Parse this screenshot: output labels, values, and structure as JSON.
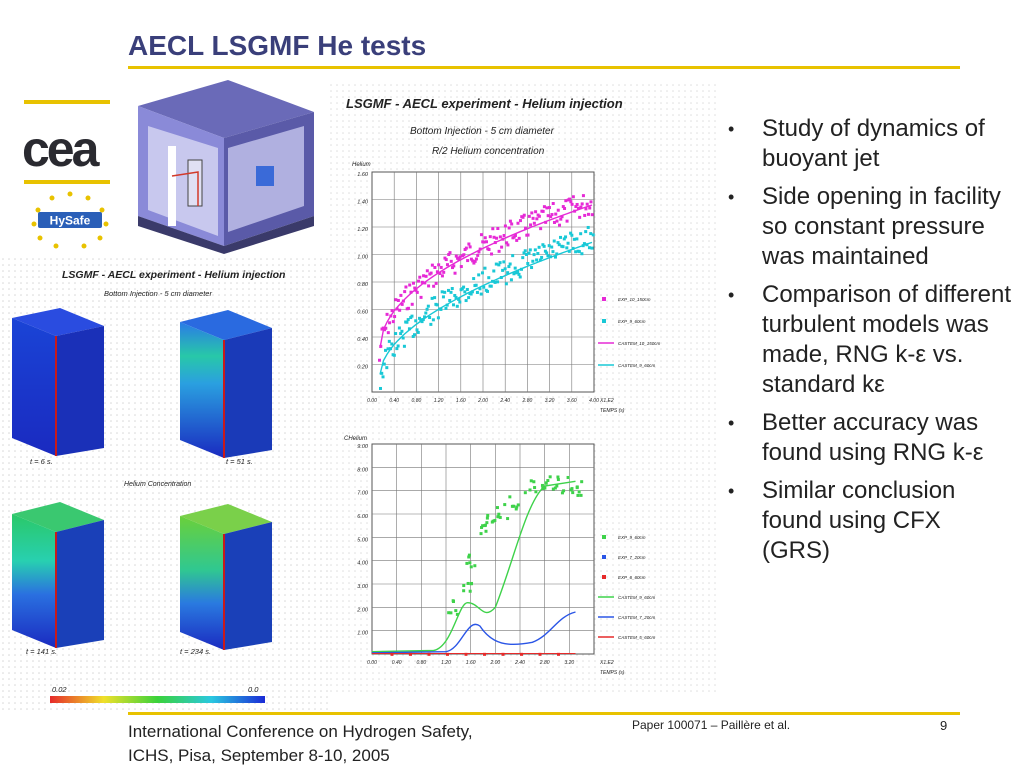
{
  "slide": {
    "title": "AECL LSGMF He tests",
    "logos": {
      "cea": "cea",
      "hysafe": "HySafe"
    },
    "bullets": [
      "Study of dynamics of buoyant jet",
      "Side opening in facility so constant pressure was maintained",
      "Comparison of different turbulent models was made, RNG k-ε vs. standard kε",
      "Better accuracy was found using RNG k-ε",
      "Similar conclusion found using CFX (GRS)"
    ],
    "footer": {
      "conference_line1": "International Conference on Hydrogen Safety,",
      "conference_line2": "ICHS, Pisa, September 8-10, 2005",
      "paper": "Paper 100071 – Paillère et al.",
      "page_number": "9"
    }
  },
  "sim_figure": {
    "title": "LSGMF - AECL experiment - Helium injection",
    "subtitle": "Bottom Injection - 5 cm diameter",
    "caption": "Helium Concentration",
    "time_labels": [
      "t = 6 s.",
      "t = 51 s.",
      "t = 141 s.",
      "t = 234 s."
    ],
    "scale_min": "0.02",
    "scale_max": "0.0"
  },
  "plot_figure": {
    "title": "LSGMF - AECL experiment - Helium injection",
    "subtitle1": "Bottom Injection - 5 cm diameter",
    "subtitle2": "R/2 Helium concentration",
    "top_ylabel": "Helium",
    "top_yticks": [
      "1.60",
      "1.40",
      "1.20",
      "1.00",
      "0.80",
      "0.60",
      "0.40",
      "0.20"
    ],
    "top_xticks": [
      "0.00",
      "0.40",
      "0.80",
      "1.20",
      "1.60",
      "2.00",
      "2.40",
      "2.80",
      "3.20",
      "3.60",
      "4.00"
    ],
    "top_legend": [
      "EXP_10_150cm",
      "EXP_9_60cm",
      "CASTEM_10_150cm",
      "CASTEM_9_60cm"
    ],
    "bottom_ylabel": "CHelium",
    "bottom_yticks": [
      "9.00",
      "8.00",
      "7.00",
      "6.00",
      "5.00",
      "4.00",
      "3.00",
      "2.00",
      "1.00"
    ],
    "bottom_xticks": [
      "0.00",
      "0.40",
      "0.80",
      "1.20",
      "1.60",
      "2.00",
      "2.40",
      "2.80",
      "3.20"
    ],
    "bottom_legend": [
      "EXP_9_60cm",
      "EXP_7_20cm",
      "EXP_6_60cm",
      "CASTEM_9_60cm",
      "CASTEM_7_20cm",
      "CASTEM_5_60cm"
    ],
    "x_unit": "TEMPS (s)",
    "x_multiplier": "X1.E2"
  },
  "colors": {
    "accent": "#e8c200",
    "title": "#3a3f7a",
    "magenta": "#e62ad6",
    "cyan": "#19c8d6",
    "green": "#3ed24a",
    "blue": "#2a55e6",
    "red": "#e62a2a"
  }
}
